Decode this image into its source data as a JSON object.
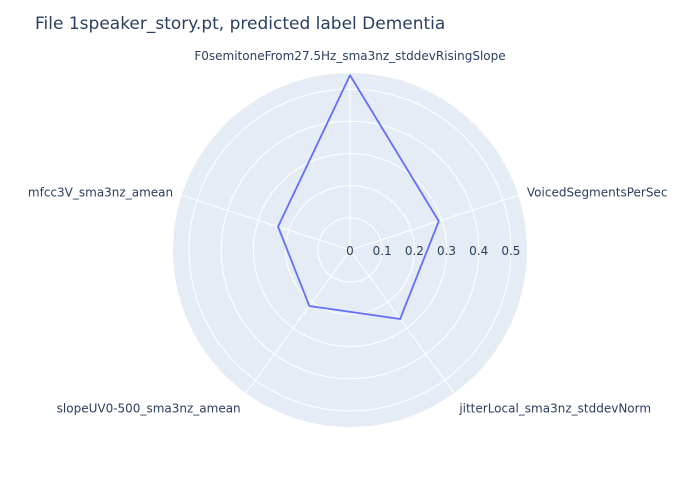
{
  "chart_data": {
    "type": "radar",
    "title": "File 1speaker_story.pt, predicted label Dementia",
    "categories": [
      "F0semitoneFrom27.5Hz_sma3nz_stddevRisingSlope",
      "VoicedSegmentsPerSec",
      "jitterLocal_sma3nz_stddevNorm",
      "slopeUV0-500_sma3nz_amean",
      "mfcc3V_sma3nz_amean"
    ],
    "series": [
      {
        "values": [
          0.543,
          0.29,
          0.265,
          0.215,
          0.235
        ]
      }
    ],
    "radial_range": [
      0,
      0.55
    ],
    "radial_ticks": [
      "0",
      "0.1",
      "0.2",
      "0.3",
      "0.4",
      "0.5"
    ],
    "radial_tick_values": [
      0,
      0.1,
      0.2,
      0.3,
      0.4,
      0.5
    ],
    "grid": true,
    "colors": {
      "polar_bg": "#e5ecf6",
      "grid": "#ffffff",
      "line": "#636efa",
      "text": "#2a3f5f"
    }
  }
}
